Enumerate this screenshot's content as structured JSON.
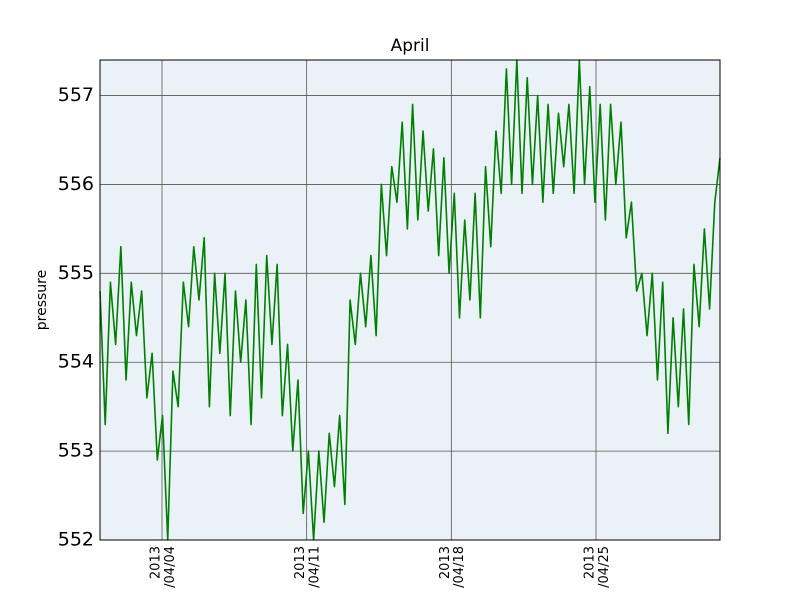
{
  "chart_data": {
    "type": "line",
    "title": "April",
    "y_label": "pressure",
    "xlim": [
      "2013-04-01",
      "2013-05-01"
    ],
    "xticks": [
      {
        "value": "2013-04-04",
        "label": "2013\n/04/04"
      },
      {
        "value": "2013-04-11",
        "label": "2013\n/04/11"
      },
      {
        "value": "2013-04-18",
        "label": "2013\n/04/18"
      },
      {
        "value": "2013-04-25",
        "label": "2013\n/04/25"
      }
    ],
    "ylim": [
      552,
      557.4
    ],
    "yticks": [
      552,
      553,
      554,
      555,
      556,
      557
    ],
    "grid": true,
    "series": [
      {
        "color": "#008000",
        "values": [
          554.8,
          553.3,
          554.9,
          554.2,
          555.3,
          553.8,
          554.9,
          554.3,
          554.8,
          553.6,
          554.1,
          552.9,
          553.4,
          552.0,
          553.9,
          553.5,
          554.9,
          554.4,
          555.3,
          554.7,
          555.4,
          553.5,
          555.0,
          554.1,
          555.0,
          553.4,
          554.8,
          554.0,
          554.7,
          553.3,
          555.1,
          553.6,
          555.2,
          554.2,
          555.1,
          553.4,
          554.2,
          553.0,
          553.8,
          552.3,
          553.0,
          552.0,
          553.0,
          552.2,
          553.2,
          552.6,
          553.4,
          552.4,
          554.7,
          554.2,
          555.0,
          554.4,
          555.2,
          554.3,
          556.0,
          555.2,
          556.2,
          555.8,
          556.7,
          555.5,
          556.9,
          555.6,
          556.6,
          555.7,
          556.4,
          555.2,
          556.3,
          555.0,
          555.9,
          554.5,
          555.6,
          554.7,
          555.9,
          554.5,
          556.2,
          555.3,
          556.6,
          555.9,
          557.3,
          556.0,
          557.4,
          555.9,
          557.2,
          556.0,
          557.0,
          555.8,
          556.9,
          555.9,
          556.8,
          556.2,
          556.9,
          555.9,
          557.4,
          556.0,
          557.1,
          555.8,
          556.9,
          555.6,
          556.9,
          556.0,
          556.7,
          555.4,
          555.8,
          554.8,
          555.0,
          554.3,
          555.0,
          553.8,
          554.9,
          553.2,
          554.5,
          553.5,
          554.6,
          553.3,
          555.1,
          554.4,
          555.5,
          554.6,
          555.8,
          556.3
        ]
      }
    ]
  }
}
